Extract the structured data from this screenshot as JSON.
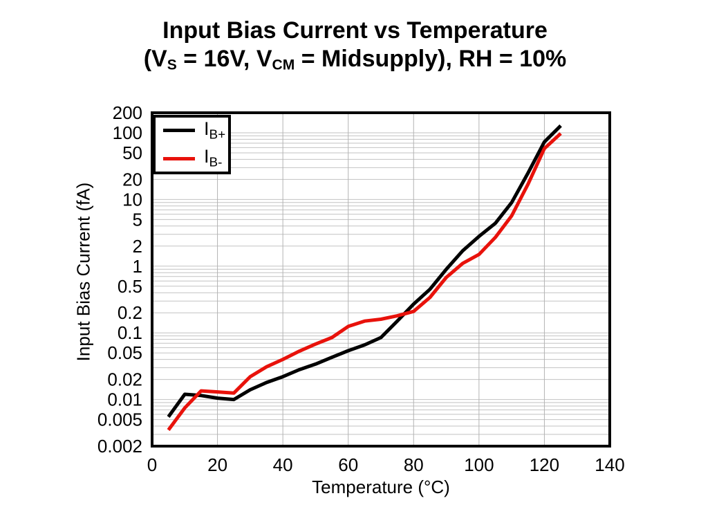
{
  "figure": {
    "title_line1": "Input Bias Current vs Temperature",
    "title_line2_segments": [
      {
        "text": "(V",
        "sub": false
      },
      {
        "text": "S",
        "sub": true
      },
      {
        "text": " = 16V, V",
        "sub": false
      },
      {
        "text": "CM",
        "sub": true
      },
      {
        "text": " = Midsupply), RH = 10%",
        "sub": false
      }
    ]
  },
  "axes": {
    "xlabel": "Temperature (°C)",
    "ylabel": "Input Bias Current (fA)"
  },
  "legend": {
    "position": "top-left",
    "items": [
      {
        "main": "I",
        "sub": "B+",
        "color": "#000000"
      },
      {
        "main": "I",
        "sub": "B-",
        "color": "#e8120b"
      }
    ]
  },
  "chart_data": {
    "type": "line",
    "title": "Input Bias Current vs Temperature",
    "subtitle": "(VS = 16V, VCM = Midsupply), RH = 10%",
    "xlabel": "Temperature (°C)",
    "ylabel": "Input Bias Current (fA)",
    "xlim": [
      0,
      140
    ],
    "ylim": [
      0.002,
      200
    ],
    "yscale": "log",
    "grid": true,
    "xticks": [
      0,
      20,
      40,
      60,
      80,
      100,
      120,
      140
    ],
    "ytick_values": [
      200,
      100,
      50,
      20,
      10,
      5,
      2,
      1,
      0.5,
      0.2,
      0.1,
      0.05,
      0.02,
      0.01,
      0.005,
      0.002
    ],
    "ytick_labels": [
      "200",
      "100",
      "50",
      "20",
      "10",
      "5",
      "2",
      "1",
      "0.5",
      "0.2",
      "0.1",
      "0.05",
      "0.02",
      "0.01",
      "0.005",
      "0.002"
    ],
    "x": [
      5,
      10,
      15,
      20,
      25,
      30,
      35,
      40,
      45,
      50,
      55,
      60,
      65,
      70,
      75,
      80,
      85,
      90,
      95,
      100,
      105,
      110,
      115,
      120,
      125
    ],
    "series": [
      {
        "name": "IB+",
        "color": "#000000",
        "values": [
          0.0055,
          0.012,
          0.0115,
          0.0105,
          0.01,
          0.014,
          0.018,
          0.022,
          0.028,
          0.034,
          0.043,
          0.054,
          0.066,
          0.085,
          0.15,
          0.27,
          0.45,
          0.9,
          1.7,
          2.8,
          4.4,
          9,
          25,
          73,
          128
        ]
      },
      {
        "name": "IB-",
        "color": "#e8120b",
        "values": [
          0.0035,
          0.0075,
          0.0135,
          0.013,
          0.0125,
          0.022,
          0.031,
          0.04,
          0.053,
          0.068,
          0.085,
          0.125,
          0.15,
          0.16,
          0.18,
          0.21,
          0.34,
          0.68,
          1.1,
          1.5,
          2.7,
          5.7,
          17,
          58,
          98
        ]
      }
    ]
  }
}
